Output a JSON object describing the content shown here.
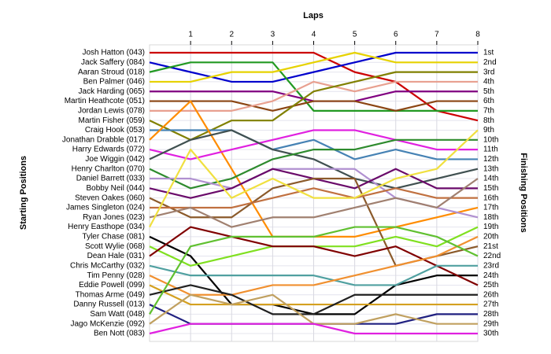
{
  "chart_data": {
    "type": "bump",
    "x_label": "Laps",
    "y_label": "Starting Positions",
    "y2_label": "Finishing Positions",
    "x": [
      0,
      1,
      2,
      3,
      4,
      5,
      6,
      7,
      8
    ],
    "xlim": [
      0,
      8
    ],
    "xticks": [
      1,
      2,
      3,
      4,
      5,
      6,
      7,
      8
    ],
    "ylim": [
      1,
      30
    ],
    "grid": true,
    "finish_labels": [
      "1st",
      "2nd",
      "3rd",
      "4th",
      "5th",
      "6th",
      "7th",
      "8th",
      "9th",
      "10th",
      "11th",
      "12th",
      "13th",
      "14th",
      "15th",
      "16th",
      "17th",
      "18th",
      "19th",
      "20th",
      "21st",
      "22nd",
      "23rd",
      "24th",
      "25th",
      "26th",
      "27th",
      "28th",
      "29th",
      "30th"
    ],
    "series": [
      {
        "name": "Josh Hatton (043)",
        "color": "#cc0000",
        "values": [
          1,
          1,
          1,
          1,
          1,
          3,
          4,
          7,
          8
        ]
      },
      {
        "name": "Jack Saffery (084)",
        "color": "#0000cc",
        "values": [
          2,
          3,
          4,
          4,
          3,
          2,
          1,
          1,
          1
        ]
      },
      {
        "name": "Aaran Stroud (018)",
        "color": "#229922",
        "values": [
          3,
          2,
          2,
          2,
          7,
          7,
          7,
          7,
          7
        ]
      },
      {
        "name": "Ben Palmer (046)",
        "color": "#e6d200",
        "values": [
          4,
          4,
          3,
          3,
          2,
          1,
          2,
          2,
          2
        ]
      },
      {
        "name": "Jack Harding (065)",
        "color": "#800080",
        "values": [
          5,
          5,
          5,
          5,
          6,
          6,
          5,
          5,
          5
        ]
      },
      {
        "name": "Martin Heathcote (051)",
        "color": "#8b4513",
        "values": [
          6,
          6,
          6,
          7,
          6,
          6,
          7,
          6,
          6
        ]
      },
      {
        "name": "Jordan Lewis (078)",
        "color": "#e8a090",
        "values": [
          7,
          7,
          7,
          6,
          4,
          5,
          4,
          4,
          4
        ]
      },
      {
        "name": "Martin Fisher (059)",
        "color": "#808000",
        "values": [
          8,
          10,
          8,
          8,
          5,
          4,
          3,
          3,
          3
        ]
      },
      {
        "name": "Craig Hook (053)",
        "color": "#4682b4",
        "values": [
          9,
          9,
          9,
          11,
          10,
          12,
          11,
          12,
          12
        ]
      },
      {
        "name": "Jonathan Drabble (017)",
        "color": "#ff8c00",
        "values": [
          10,
          6,
          13,
          20,
          20,
          20,
          19,
          18,
          17
        ]
      },
      {
        "name": "Harry Edwards (072)",
        "color": "#e020e0",
        "values": [
          11,
          12,
          11,
          10,
          9,
          9,
          10,
          11,
          11
        ]
      },
      {
        "name": "Joe Wiggin (042)",
        "color": "#405050",
        "values": [
          12,
          10,
          9,
          11,
          12,
          14,
          15,
          14,
          13
        ]
      },
      {
        "name": "Henry Charlton (070)",
        "color": "#2e8b2e",
        "values": [
          13,
          15,
          14,
          12,
          11,
          11,
          10,
          10,
          10
        ]
      },
      {
        "name": "Daniel Barrett (033)",
        "color": "#b090d0",
        "values": [
          14,
          14,
          15,
          13,
          13,
          13,
          16,
          17,
          18
        ]
      },
      {
        "name": "Bobby Neil (044)",
        "color": "#6a0a6a",
        "values": [
          15,
          16,
          15,
          13,
          14,
          15,
          13,
          15,
          15
        ]
      },
      {
        "name": "Steven Oakes (060)",
        "color": "#8b5a2b",
        "values": [
          16,
          18,
          18,
          15,
          14,
          14,
          23,
          22,
          21
        ]
      },
      {
        "name": "James Singleton (024)",
        "color": "#c07040",
        "values": [
          17,
          17,
          17,
          16,
          15,
          16,
          15,
          16,
          16
        ]
      },
      {
        "name": "Ryan Jones (023)",
        "color": "#a08070",
        "values": [
          18,
          17,
          19,
          18,
          18,
          17,
          16,
          17,
          14
        ]
      },
      {
        "name": "Henry Easthope (034)",
        "color": "#f0e040",
        "values": [
          19,
          11,
          16,
          14,
          16,
          16,
          14,
          13,
          9
        ]
      },
      {
        "name": "Tyler Chase (081)",
        "color": "#000000",
        "values": [
          20,
          22,
          27,
          27,
          28,
          28,
          25,
          24,
          24
        ]
      },
      {
        "name": "Scott Wylie (068)",
        "color": "#80e020",
        "values": [
          21,
          23,
          22,
          21,
          21,
          21,
          20,
          21,
          19
        ]
      },
      {
        "name": "Dean Hale (031)",
        "color": "#800000",
        "values": [
          22,
          19,
          20,
          21,
          21,
          22,
          21,
          23,
          25
        ]
      },
      {
        "name": "Chris McCarthy (032)",
        "color": "#50a0a0",
        "values": [
          23,
          24,
          24,
          24,
          24,
          25,
          25,
          23,
          23
        ]
      },
      {
        "name": "Tim Penny (028)",
        "color": "#f09030",
        "values": [
          24,
          26,
          26,
          25,
          25,
          24,
          23,
          22,
          20
        ]
      },
      {
        "name": "Eddie Powell (099)",
        "color": "#d4a020",
        "values": [
          25,
          27,
          27,
          27,
          27,
          27,
          27,
          27,
          27
        ]
      },
      {
        "name": "Thomas Arme (049)",
        "color": "#202020",
        "values": [
          26,
          25,
          26,
          28,
          28,
          26,
          26,
          26,
          26
        ]
      },
      {
        "name": "Danny Russell (013)",
        "color": "#202080",
        "values": [
          27,
          29,
          29,
          29,
          29,
          29,
          29,
          28,
          28
        ]
      },
      {
        "name": "Sam Watt (048)",
        "color": "#60c030",
        "values": [
          28,
          21,
          20,
          20,
          20,
          19,
          19,
          20,
          22
        ]
      },
      {
        "name": "Jago McKenzie (092)",
        "color": "#c0a060",
        "values": [
          29,
          26,
          27,
          26,
          29,
          29,
          28,
          29,
          29
        ]
      },
      {
        "name": "Ben Nott (083)",
        "color": "#e020e0",
        "values": [
          30,
          29,
          29,
          29,
          29,
          30,
          30,
          30,
          30
        ]
      }
    ]
  }
}
